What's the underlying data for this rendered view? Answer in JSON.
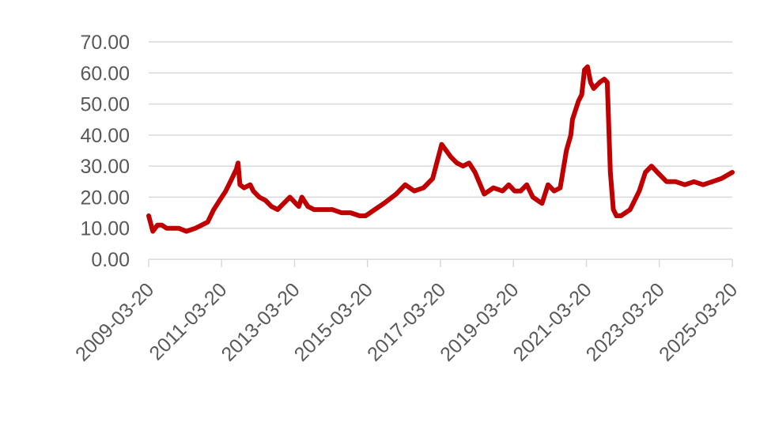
{
  "chart_data": {
    "type": "line",
    "title": "",
    "xlabel": "",
    "ylabel": "",
    "ylim": [
      0,
      70
    ],
    "xlim": [
      "2009-03-20",
      "2025-03-20"
    ],
    "grid": true,
    "legend": "none",
    "y_ticks": [
      "0.00",
      "10.00",
      "20.00",
      "30.00",
      "40.00",
      "50.00",
      "60.00",
      "70.00"
    ],
    "x_ticks": [
      "2009-03-20",
      "2011-03-20",
      "2013-03-20",
      "2015-03-20",
      "2017-03-20",
      "2019-03-20",
      "2021-03-20",
      "2023-03-20",
      "2025-03-20"
    ],
    "colors": {
      "series": "#c00000",
      "grid": "#d9d9d9",
      "tick_text": "#595959"
    },
    "series": [
      {
        "x": [
          "2009-03-20",
          "2009-05-01",
          "2009-06-15",
          "2009-08-01",
          "2009-09-15",
          "2009-11-01",
          "2010-01-15",
          "2010-04-01",
          "2010-07-01",
          "2010-09-01",
          "2010-11-01",
          "2011-01-01",
          "2011-03-01",
          "2011-05-01",
          "2011-07-01",
          "2011-08-15",
          "2011-09-01",
          "2011-09-20",
          "2011-11-01",
          "2012-01-01",
          "2012-02-01",
          "2012-04-01",
          "2012-06-01",
          "2012-08-01",
          "2012-10-01",
          "2012-12-01",
          "2013-02-01",
          "2013-04-01",
          "2013-05-01",
          "2013-06-01",
          "2013-08-01",
          "2013-10-01",
          "2014-01-01",
          "2014-04-01",
          "2014-07-01",
          "2014-10-01",
          "2015-01-01",
          "2015-03-01",
          "2015-06-01",
          "2015-09-01",
          "2016-01-01",
          "2016-04-01",
          "2016-07-01",
          "2016-10-01",
          "2017-01-01",
          "2017-04-01",
          "2017-07-01",
          "2017-09-01",
          "2017-11-01",
          "2018-01-01",
          "2018-03-01",
          "2018-06-01",
          "2018-09-01",
          "2018-12-01",
          "2019-02-01",
          "2019-04-01",
          "2019-06-01",
          "2019-08-01",
          "2019-10-01",
          "2020-01-01",
          "2020-03-01",
          "2020-05-01",
          "2020-07-01",
          "2020-09-01",
          "2020-10-15",
          "2020-11-01",
          "2020-12-01",
          "2021-01-01",
          "2021-02-01",
          "2021-03-01",
          "2021-04-01",
          "2021-05-01",
          "2021-06-01",
          "2021-08-01",
          "2021-09-15",
          "2021-10-15",
          "2021-11-15",
          "2021-12-15",
          "2022-01-15",
          "2022-03-01",
          "2022-06-01",
          "2022-09-01",
          "2022-11-01",
          "2023-01-01",
          "2023-03-01",
          "2023-06-01",
          "2023-09-01",
          "2023-12-01",
          "2024-03-01",
          "2024-06-01",
          "2024-09-01",
          "2024-12-01",
          "2025-03-20"
        ],
        "values": [
          14,
          9,
          11,
          11,
          10,
          10,
          10,
          9,
          10,
          11,
          12,
          16,
          19,
          22,
          26,
          29,
          31,
          24,
          23,
          24,
          22,
          20,
          19,
          17,
          16,
          18,
          20,
          18,
          17,
          20,
          17,
          16,
          16,
          16,
          15,
          15,
          14,
          14,
          16,
          18,
          21,
          24,
          22,
          23,
          26,
          37,
          33,
          31,
          30,
          31,
          28,
          21,
          23,
          22,
          24,
          22,
          22,
          24,
          20,
          18,
          24,
          22,
          23,
          35,
          40,
          45,
          48,
          51,
          53,
          61,
          62,
          57,
          55,
          57,
          58,
          57,
          28,
          16,
          14,
          14,
          16,
          22,
          28,
          30,
          28,
          25,
          25,
          24,
          25,
          24,
          25,
          26,
          28
        ]
      }
    ]
  }
}
